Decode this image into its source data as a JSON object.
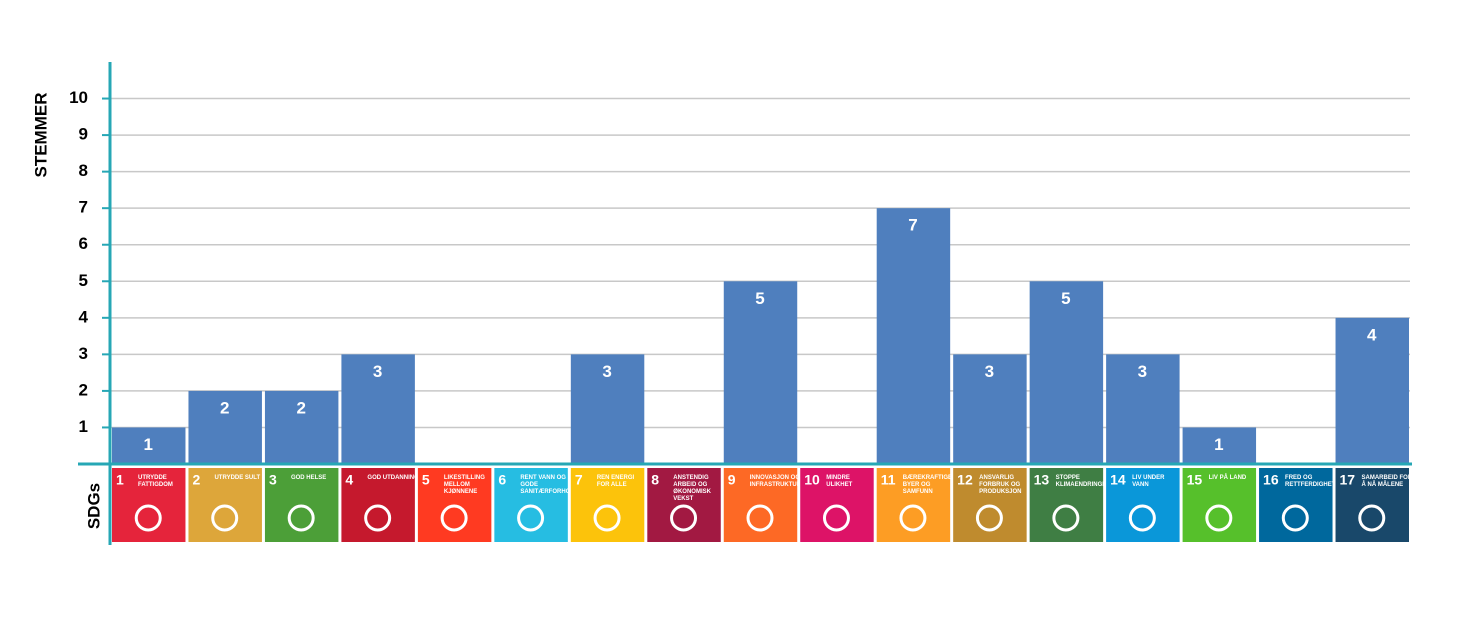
{
  "chart_data": {
    "type": "bar",
    "y_label": "STEMMER",
    "x_label": "SDGs",
    "categories": [
      "UTRYDDE FATTIGDOM",
      "UTRYDDE SULT",
      "GOD HELSE",
      "GOD UTDANNING",
      "LIKESTILLING MELLOM KJØNNENE",
      "RENT VANN OG GODE SANITÆRFORHOLD",
      "REN ENERGI FOR ALLE",
      "ANSTENDIG ARBEID OG ØKONOMISK VEKST",
      "INNOVASJON OG INFRASTRUKTUR",
      "MINDRE ULIKHET",
      "BÆREKRAFTIGE BYER OG SAMFUNN",
      "ANSVARLIG FORBRUK OG PRODUKSJON",
      "STOPPE KLIMAENDRINGENE",
      "LIV UNDER VANN",
      "LIV PÅ LAND",
      "FRED OG RETTFERDIGHET",
      "SAMARBEID FOR Å NÅ MÅLENE"
    ],
    "category_numbers": [
      1,
      2,
      3,
      4,
      5,
      6,
      7,
      8,
      9,
      10,
      11,
      12,
      13,
      14,
      15,
      16,
      17
    ],
    "category_colors": [
      "#e5243b",
      "#dda63a",
      "#4c9f38",
      "#c5192d",
      "#ff3a21",
      "#26bde2",
      "#fcc30b",
      "#a21942",
      "#fd6925",
      "#dd1367",
      "#fd9d24",
      "#bf8b2e",
      "#3f7e44",
      "#0a97d9",
      "#56c02b",
      "#00689d",
      "#19486a"
    ],
    "values": [
      1,
      2,
      2,
      3,
      0,
      0,
      3,
      0,
      5,
      0,
      7,
      3,
      5,
      3,
      1,
      0,
      4
    ],
    "color": "#4f7fbe",
    "ylim": [
      0,
      11
    ],
    "yticks": [
      1,
      2,
      3,
      4,
      5,
      6,
      7,
      8,
      9,
      10
    ],
    "grid": true
  }
}
